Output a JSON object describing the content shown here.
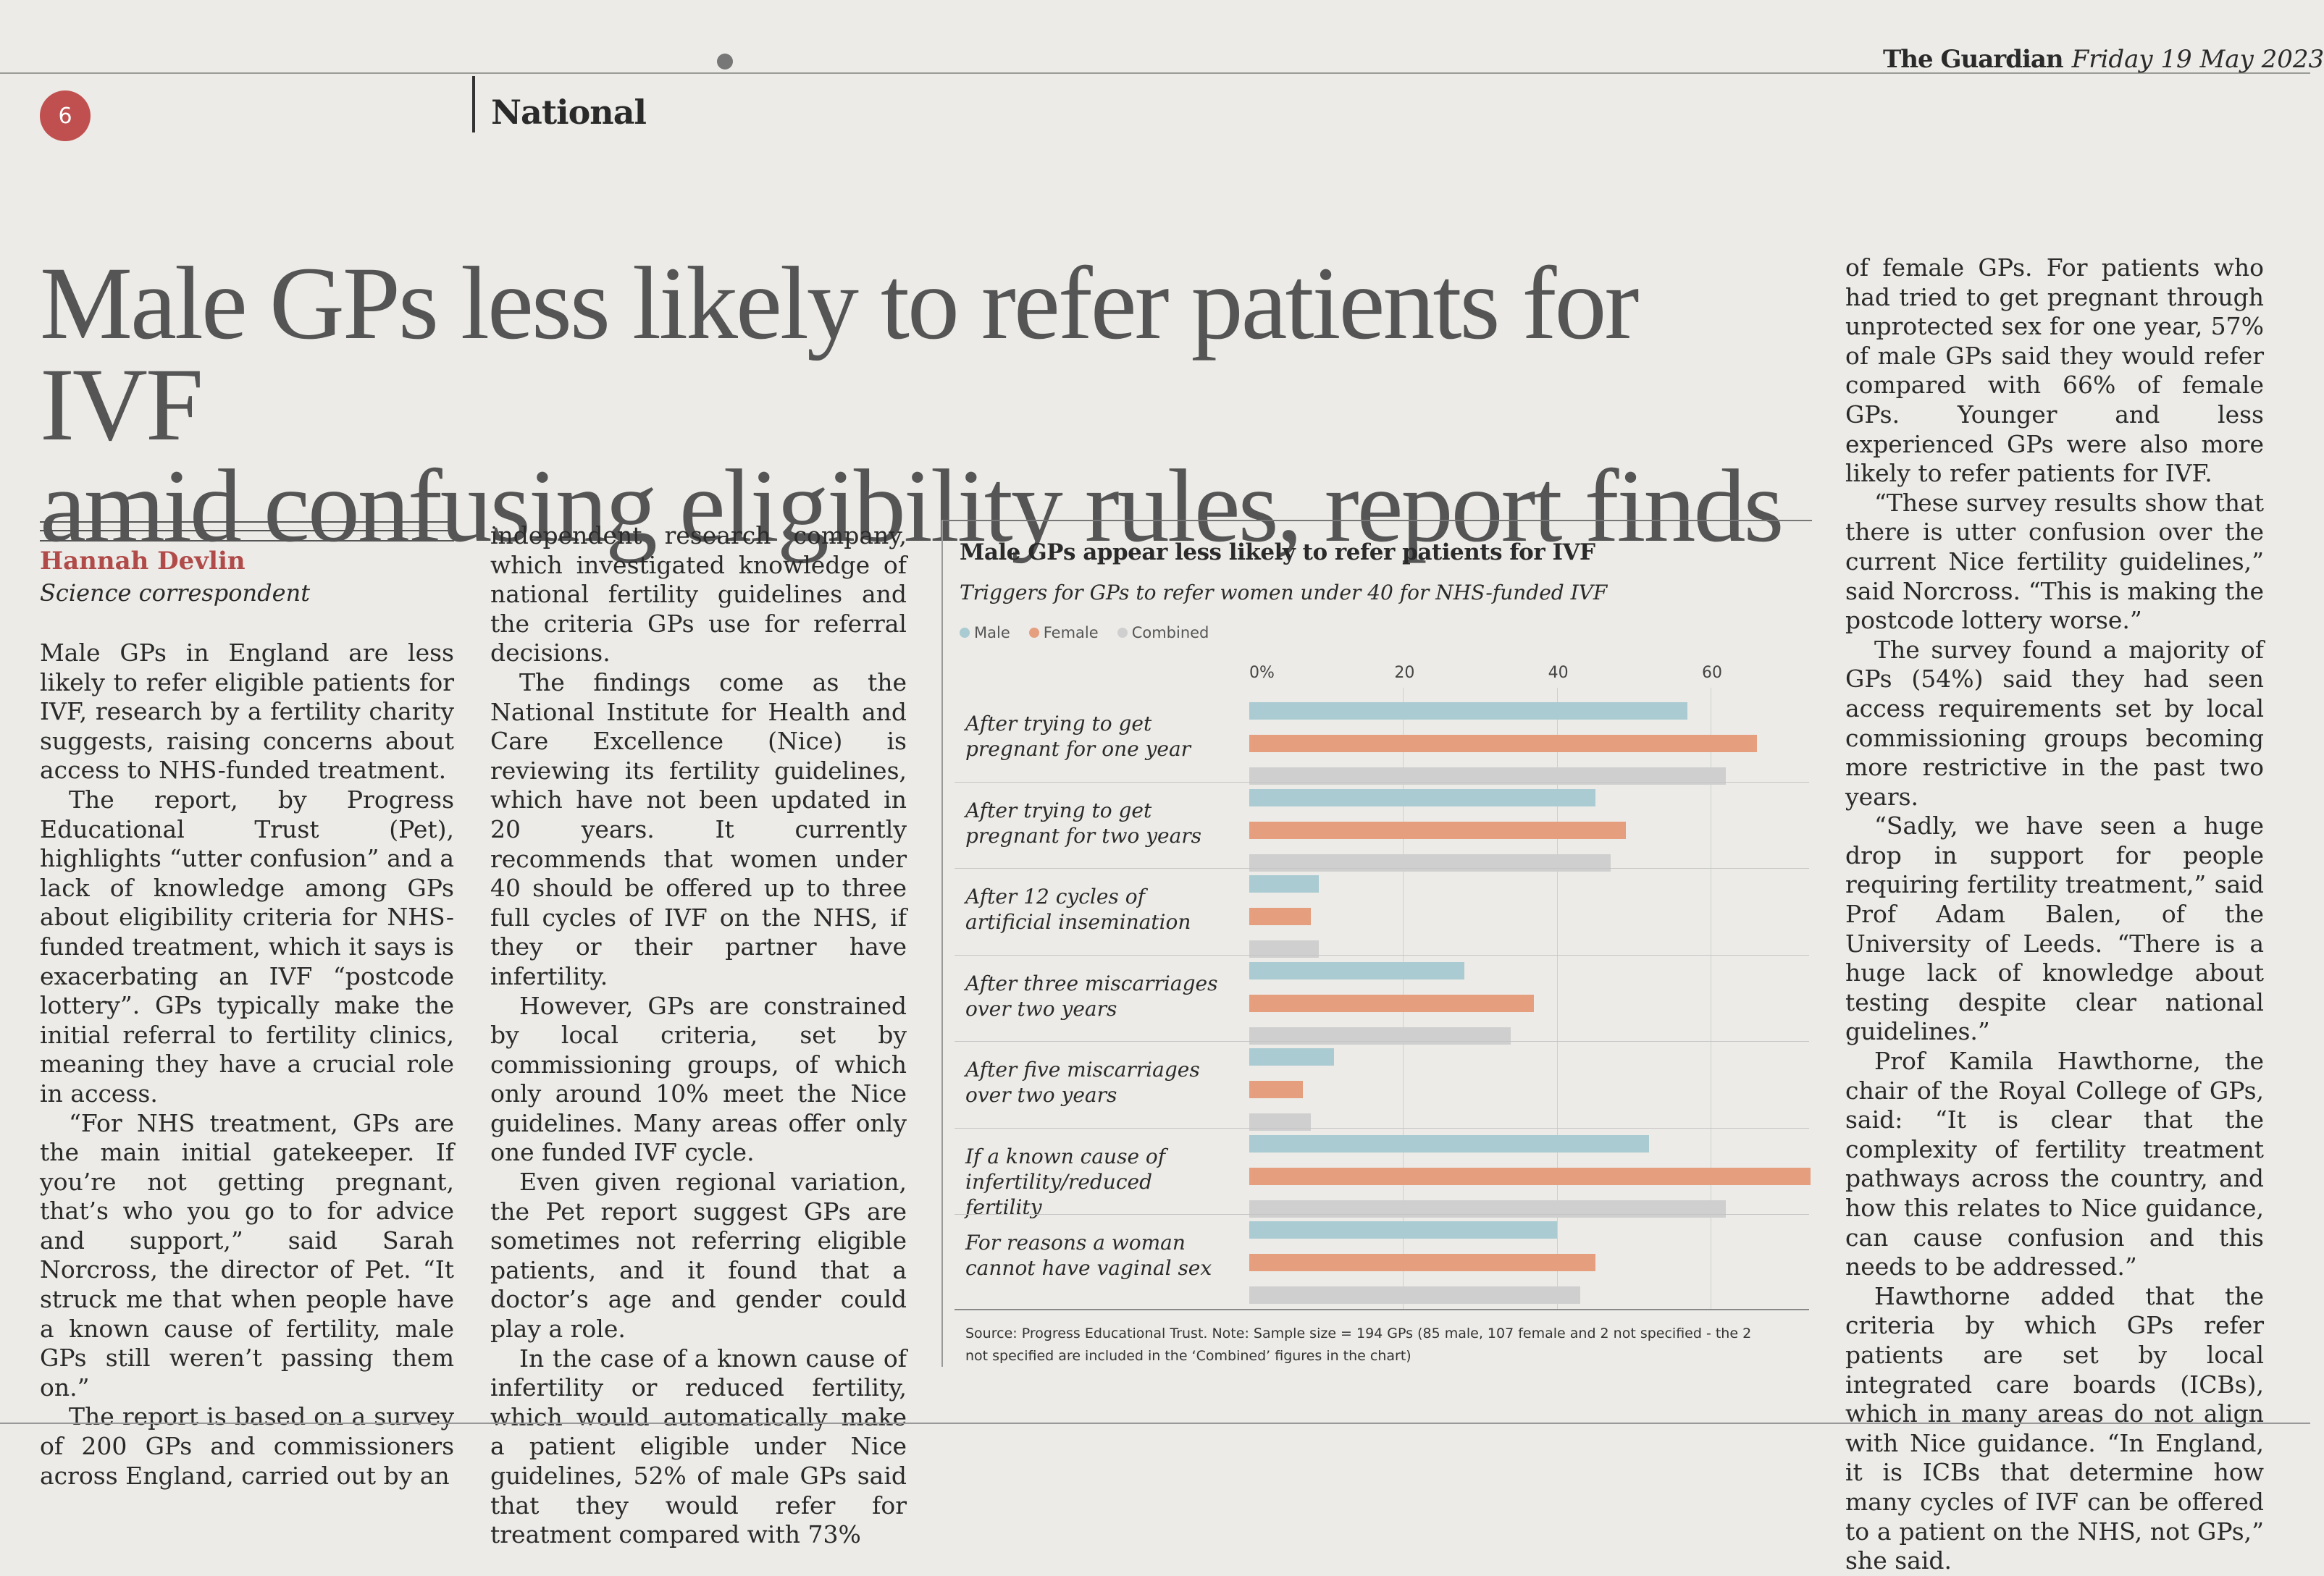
{
  "header": {
    "page_number": "6",
    "section": "National",
    "paper": "The Guardian",
    "date": "Friday 19 May 2023"
  },
  "article": {
    "headline_line1": "Male GPs less likely to refer patients for IVF",
    "headline_line2": "amid confusing eligibility rules, report finds",
    "author": "Hannah Devlin",
    "author_role": "Science correspondent",
    "col1": [
      "Male GPs in England are less likely to refer eligible patients for IVF, research by a fertility charity suggests, raising concerns about access to NHS-funded treatment.",
      "The report, by Progress Educational Trust (Pet), highlights “utter confusion” and a lack of knowledge among GPs about eligibility criteria for NHS-funded treatment, which it says is exacerbating an IVF “postcode lottery”. GPs typically make the initial referral to fertility clinics, meaning they have a crucial role in access.",
      "“For NHS treatment, GPs are the main initial gatekeeper. If you’re not getting pregnant, that’s who you go to for advice and support,” said Sarah Norcross, the director of Pet. “It struck me that when people have a known cause of fertility, male GPs still weren’t passing them on.”",
      "The report is based on a survey of 200 GPs and commissioners across England, carried out by an"
    ],
    "col2": [
      "independent research company, which investigated knowledge of national fertility guidelines and the criteria GPs use for referral decisions.",
      "The findings come as the National Institute for Health and Care Excellence (Nice) is reviewing its fertility guidelines, which have not been updated in 20 years. It currently recommends that women under 40 should be offered up to three full cycles of IVF on the NHS, if they or their partner have infertility.",
      "However, GPs are constrained by local criteria, set by commissioning groups, of which only around 10% meet the Nice guidelines. Many areas offer only one funded IVF cycle.",
      "Even given regional variation, the Pet report suggest GPs are sometimes not referring eligible patients, and it found that a doctor’s age and gender could play a role.",
      "In the case of a known cause of infertility or reduced fertility, which would automatically make a patient eligible under Nice guidelines, 52% of male GPs said that they would refer for treatment compared with 73%"
    ],
    "col3": [
      "of female GPs. For patients who had tried to get pregnant through unprotected sex for one year, 57% of male GPs said they would refer compared with 66% of female GPs. Younger and less experienced GPs were also more likely to refer patients for IVF.",
      "“These survey results show that there is utter confusion over the current Nice fertility guidelines,” said Norcross. “This is making the postcode lottery worse.”",
      "The survey found a majority of GPs (54%) said they had seen access requirements set by local commissioning groups becoming more restrictive in the past two years.",
      "“Sadly, we have seen a huge drop in support for people requiring fertility treatment,” said Prof Adam Balen, of the University of Leeds. “There is a huge lack of knowledge about testing despite clear national guidelines.”",
      "Prof Kamila Hawthorne, the chair of the Royal College of GPs, said: “It is clear that the complexity of fertility treatment pathways across the country, and how this relates to Nice guidance, can cause confusion and this needs to be addressed.”",
      "Hawthorne added that the criteria by which GPs refer patients are set by local integrated care boards (ICBs), which in many areas do not align with Nice guidance. “In England, it is ICBs that determine how many cycles of IVF can be offered to a patient on the NHS, not GPs,” she said."
    ]
  },
  "chart_data": {
    "type": "bar",
    "orientation": "horizontal",
    "title": "Male GPs appear less likely to refer patients for IVF",
    "subtitle": "Triggers for GPs to refer women under 40 for NHS-funded IVF",
    "tick_labels": [
      "0%",
      "20",
      "40",
      "60"
    ],
    "ticks": [
      0,
      20,
      40,
      60
    ],
    "xlim": [
      0,
      73
    ],
    "categories": [
      [
        "After trying to get",
        "pregnant for one year"
      ],
      [
        "After trying to get",
        "pregnant for two years"
      ],
      [
        "After 12 cycles of",
        "artificial insemination"
      ],
      [
        "After three miscarriages",
        "over two years"
      ],
      [
        "After five miscarriages",
        "over two years"
      ],
      [
        "If a known cause of",
        "infertility/reduced fertility"
      ],
      [
        "For reasons a woman",
        "cannot have vaginal sex"
      ]
    ],
    "series": [
      {
        "name": "Male",
        "color": "#a9cbd1",
        "values": [
          57,
          45,
          9,
          28,
          11,
          52,
          40
        ]
      },
      {
        "name": "Female",
        "color": "#e59e7e",
        "values": [
          66,
          49,
          8,
          37,
          7,
          73,
          45
        ]
      },
      {
        "name": "Combined",
        "color": "#cfcfcf",
        "values": [
          62,
          47,
          9,
          34,
          8,
          62,
          43
        ]
      }
    ],
    "source": "Source: Progress Educational Trust. Note: Sample size = 194 GPs (85 male, 107 female and 2 not specified - the 2 not specified are included in the ‘Combined’ figures in the chart)"
  }
}
